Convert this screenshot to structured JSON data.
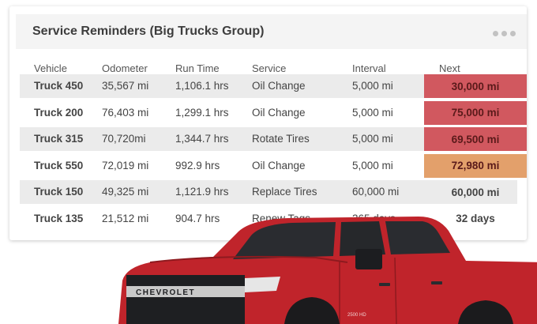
{
  "panel": {
    "title": "Service Reminders (Big Trucks Group)"
  },
  "table": {
    "columns": [
      "Vehicle",
      "Odometer",
      "Run Time",
      "Service",
      "Interval",
      "Next"
    ],
    "rows": [
      {
        "vehicle": "Truck 450",
        "odometer": "35,567 mi",
        "run_time": "1,106.1 hrs",
        "service": "Oil Change",
        "interval": "5,000 mi",
        "next": "30,000 mi",
        "status_color": "#d1585f"
      },
      {
        "vehicle": "Truck 200",
        "odometer": "76,403 mi",
        "run_time": "1,299.1 hrs",
        "service": "Oil Change",
        "interval": "5,000 mi",
        "next": "75,000 mi",
        "status_color": "#d1585f"
      },
      {
        "vehicle": "Truck 315",
        "odometer": "70,720mi",
        "run_time": "1,344.7 hrs",
        "service": "Rotate Tires",
        "interval": "5,000 mi",
        "next": "69,500 mi",
        "status_color": "#d1585f"
      },
      {
        "vehicle": "Truck 550",
        "odometer": "72,019 mi",
        "run_time": "992.9 hrs",
        "service": "Oil Change",
        "interval": "5,000 mi",
        "next": "72,980 mi",
        "status_color": "#e3a06b"
      },
      {
        "vehicle": "Truck 150",
        "odometer": "49,325 mi",
        "run_time": "1,121.9 hrs",
        "service": "Replace Tires",
        "interval": "60,000 mi",
        "next": "60,000 mi",
        "status_color": ""
      },
      {
        "vehicle": "Truck 135",
        "odometer": "21,512 mi",
        "run_time": "904.7 hrs",
        "service": "Renew Tags",
        "interval": "365 days",
        "next": "32 days",
        "status_color": ""
      }
    ]
  },
  "truck_image": {
    "brand_text": "CHEVROLET",
    "badge_text": "2500 HD",
    "body_color": "#c0242b"
  }
}
